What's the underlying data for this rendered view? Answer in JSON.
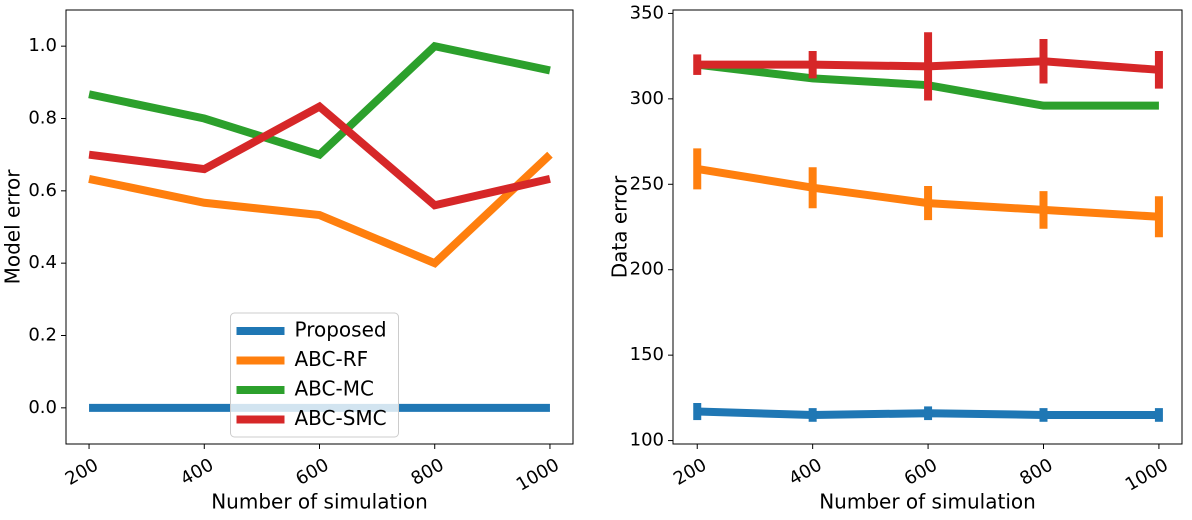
{
  "chart_data": [
    {
      "type": "line",
      "xlabel": "Number of simulation",
      "ylabel": "Model error",
      "x": [
        200,
        400,
        600,
        800,
        1000
      ],
      "xlim": [
        160,
        1040
      ],
      "xticks": [
        200,
        400,
        600,
        800,
        1000
      ],
      "ylim": [
        -0.1,
        1.1
      ],
      "yticks": [
        {
          "value": 0,
          "label": "0.0"
        },
        {
          "value": 0.2,
          "label": "0.2"
        },
        {
          "value": 0.4,
          "label": "0.4"
        },
        {
          "value": 0.6,
          "label": "0.6"
        },
        {
          "value": 0.8,
          "label": "0.8"
        },
        {
          "value": 1,
          "label": "1.0"
        }
      ],
      "legend": "lower center",
      "series": [
        {
          "name": "Proposed",
          "color": "#1f77b4",
          "values": [
            0,
            0,
            0,
            0,
            0
          ]
        },
        {
          "name": "ABC-RF",
          "color": "#ff7f0e",
          "values": [
            0.633,
            0.567,
            0.533,
            0.4,
            0.7
          ]
        },
        {
          "name": "ABC-MC",
          "color": "#2ca02c",
          "values": [
            0.867,
            0.8,
            0.7,
            1.0,
            0.933
          ]
        },
        {
          "name": "ABC-SMC",
          "color": "#d62728",
          "values": [
            0.7,
            0.66,
            0.833,
            0.56,
            0.633
          ]
        }
      ]
    },
    {
      "type": "line",
      "xlabel": "Number of simulation",
      "ylabel": "Data error",
      "x": [
        200,
        400,
        600,
        800,
        1000
      ],
      "xlim": [
        158,
        1040
      ],
      "xticks": [
        200,
        400,
        600,
        800,
        1000
      ],
      "ylim": [
        98,
        352
      ],
      "yticks": [
        100,
        150,
        200,
        250,
        300,
        350
      ],
      "series": [
        {
          "color": "#1f77b4",
          "values": [
            117,
            115,
            116,
            115,
            115
          ],
          "errors": [
            5,
            4,
            4,
            4,
            4
          ]
        },
        {
          "color": "#ff7f0e",
          "values": [
            259,
            248,
            239,
            235,
            231
          ],
          "errors": [
            12,
            12,
            10,
            11,
            12
          ]
        },
        {
          "color": "#2ca02c",
          "values": [
            320,
            312,
            308,
            296,
            296
          ]
        },
        {
          "color": "#d62728",
          "values": [
            320,
            320,
            319,
            322,
            317
          ],
          "errors": [
            6,
            8,
            20,
            13,
            11
          ]
        }
      ]
    }
  ]
}
